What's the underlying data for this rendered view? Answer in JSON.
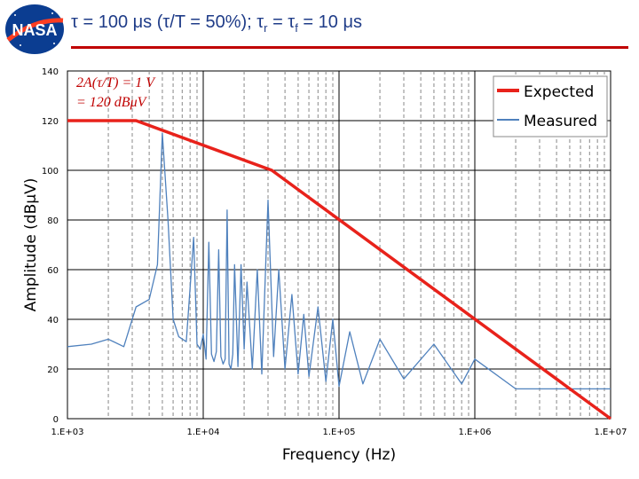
{
  "header": {
    "logo_text": "NASA",
    "title_tau": "τ = 100 μs (τ/T = 50%); τ",
    "title_r_sub": "r",
    "title_eq": " = τ",
    "title_f_sub": "f",
    "title_tail": " = 10 μs"
  },
  "colors": {
    "expected": "#e8221b",
    "measured": "#4f81bd",
    "title": "#1f3c88",
    "rule": "#c00000"
  },
  "chart_data": {
    "type": "line",
    "xscale": "log",
    "xlabel": "Frequency (Hz)",
    "ylabel": "Amplitude (dBμV)",
    "xlim": [
      1000,
      10000000
    ],
    "ylim": [
      0,
      140
    ],
    "xticks": [
      1000,
      10000,
      100000,
      1000000,
      10000000
    ],
    "xtick_labels": [
      "1.E+03",
      "1.E+04",
      "1.E+05",
      "1.E+06",
      "1.E+07"
    ],
    "yticks": [
      0,
      20,
      40,
      60,
      80,
      100,
      120,
      140
    ],
    "ytick_labels": [
      "0",
      "20",
      "40",
      "60",
      "80",
      "100",
      "120",
      "140"
    ],
    "grid": true,
    "legend": {
      "position": "top-right",
      "entries": [
        "Expected",
        "Measured"
      ]
    },
    "annotations": [
      "2A(τ/T) = 1 V",
      "= 120 dBμV"
    ],
    "series": [
      {
        "name": "Expected",
        "x": [
          1000,
          3200,
          32000,
          10000000
        ],
        "y": [
          120,
          120,
          100,
          0
        ]
      },
      {
        "name": "Measured",
        "x": [
          1000,
          1500,
          2000,
          2600,
          3200,
          4000,
          4600,
          5000,
          5500,
          6000,
          6600,
          7500,
          8500,
          9000,
          9500,
          10000,
          10500,
          11000,
          11500,
          12000,
          12500,
          13000,
          13500,
          14000,
          14500,
          15000,
          15500,
          16000,
          16500,
          17000,
          18000,
          19000,
          20000,
          21000,
          23000,
          25000,
          27000,
          30000,
          33000,
          36000,
          40000,
          45000,
          50000,
          55000,
          60000,
          70000,
          80000,
          90000,
          100000,
          120000,
          150000,
          200000,
          300000,
          500000,
          800000,
          1000000,
          2000000,
          5000000,
          10000000
        ],
        "y": [
          29,
          30,
          32,
          29,
          45,
          48,
          62,
          115,
          80,
          40,
          33,
          31,
          73,
          30,
          28,
          34,
          24,
          71,
          26,
          23,
          27,
          68,
          25,
          22,
          24,
          84,
          22,
          20,
          26,
          62,
          21,
          62,
          28,
          55,
          20,
          60,
          18,
          88,
          25,
          60,
          20,
          50,
          18,
          42,
          17,
          45,
          15,
          40,
          13,
          35,
          14,
          32,
          16,
          30,
          14,
          24,
          12,
          12,
          12
        ]
      }
    ]
  }
}
